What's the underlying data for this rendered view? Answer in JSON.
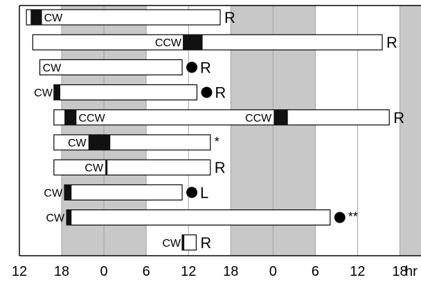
{
  "chart_data": {
    "type": "bar",
    "x_unit_label": "hr",
    "x_ticks": [
      "12",
      "18",
      "0",
      "6",
      "12",
      "18",
      "0",
      "6",
      "12",
      "18"
    ],
    "xlim_hours": [
      12,
      69
    ],
    "shaded_bands_hours": [
      [
        18,
        30
      ],
      [
        42,
        54
      ],
      [
        66,
        69
      ]
    ],
    "colors": {
      "shade": "#c8c8c8",
      "grid": "#a0a0a0",
      "bar_fill": "#ffffff",
      "mark": "#111111"
    },
    "rows": [
      {
        "start": 13,
        "end": 40.5,
        "marks": [
          [
            13.6,
            15.2
          ]
        ],
        "texts": [
          {
            "text": "CW",
            "at": 15.5,
            "pos": "inside"
          }
        ],
        "suffix": [
          {
            "kind": "text",
            "text": "R"
          }
        ]
      },
      {
        "start": 13.9,
        "end": 63.5,
        "marks": [
          [
            35.2,
            38
          ]
        ],
        "texts": [
          {
            "text": "CCW",
            "at": 35,
            "pos": "inside-left"
          }
        ],
        "suffix": [
          {
            "kind": "text",
            "text": "R"
          }
        ]
      },
      {
        "start": 14.9,
        "end": 35.1,
        "marks": [],
        "texts": [
          {
            "text": "CW",
            "at": 15.3,
            "pos": "inside"
          }
        ],
        "suffix": [
          {
            "kind": "dot"
          },
          {
            "kind": "text",
            "text": "R"
          }
        ]
      },
      {
        "start": 16.9,
        "end": 37.2,
        "marks": [
          [
            16.9,
            17.8
          ]
        ],
        "texts": [
          {
            "text": "CW",
            "at": 16.7,
            "pos": "outside-left"
          }
        ],
        "suffix": [
          {
            "kind": "dot"
          },
          {
            "kind": "text",
            "text": "R"
          }
        ]
      },
      {
        "start": 16.9,
        "end": 64.5,
        "marks": [
          [
            18.4,
            20.1
          ],
          [
            48.1,
            50.1
          ]
        ],
        "texts": [
          {
            "text": "CCW",
            "at": 20.4,
            "pos": "inside"
          },
          {
            "text": "CCW",
            "at": 47.8,
            "pos": "inside-left"
          }
        ],
        "suffix": [
          {
            "kind": "text",
            "text": "R"
          }
        ]
      },
      {
        "start": 16.9,
        "end": 39.1,
        "marks": [
          [
            21.8,
            24.9
          ]
        ],
        "texts": [
          {
            "text": "CW",
            "at": 21.5,
            "pos": "inside-left"
          }
        ],
        "suffix": [
          {
            "kind": "text",
            "text": "*"
          }
        ]
      },
      {
        "start": 16.9,
        "end": 39.1,
        "marks": [
          [
            24.2,
            24.5
          ]
        ],
        "texts": [
          {
            "text": "CW",
            "at": 23.9,
            "pos": "inside-left"
          }
        ],
        "suffix": [
          {
            "kind": "text",
            "text": "R"
          }
        ]
      },
      {
        "start": 18.4,
        "end": 35.1,
        "marks": [
          [
            18.4,
            19.4
          ]
        ],
        "texts": [
          {
            "text": "CW",
            "at": 18.1,
            "pos": "outside-left"
          }
        ],
        "suffix": [
          {
            "kind": "dot"
          },
          {
            "kind": "text",
            "text": "L"
          }
        ]
      },
      {
        "start": 18.7,
        "end": 56.1,
        "marks": [
          [
            18.7,
            19.4
          ]
        ],
        "texts": [
          {
            "text": "CW",
            "at": 18.4,
            "pos": "outside-left"
          }
        ],
        "suffix": [
          {
            "kind": "dot"
          },
          {
            "kind": "text",
            "text": "**"
          }
        ]
      },
      {
        "start": 35.1,
        "end": 37.1,
        "marks": [
          [
            35.1,
            35.4
          ]
        ],
        "texts": [
          {
            "text": "CW",
            "at": 34.9,
            "pos": "outside-left"
          }
        ],
        "suffix": [
          {
            "kind": "text",
            "text": "R"
          }
        ]
      }
    ]
  }
}
